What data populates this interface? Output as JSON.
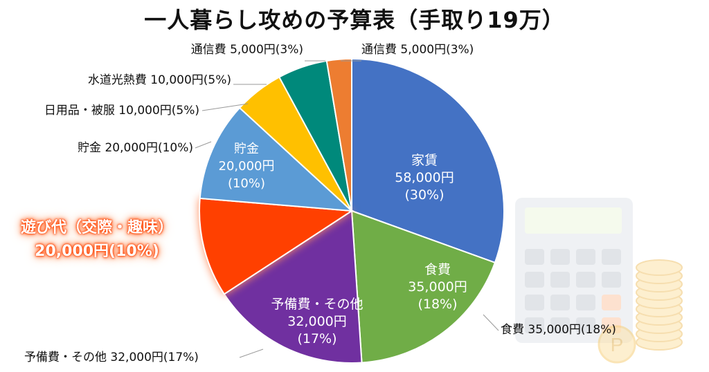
{
  "chart_data": {
    "type": "pie",
    "title": "一人暮らし攻めの予算表（手取り19万）",
    "slices": [
      {
        "label": "家賃",
        "value": 58000,
        "amount": "58,000円",
        "percent": "(30%)",
        "color": "#4472c4"
      },
      {
        "label": "食費",
        "value": 35000,
        "amount": "35,000円",
        "percent": "(18%)",
        "color": "#70ad47"
      },
      {
        "label": "予備費・その他",
        "value": 32000,
        "amount": "32,000円",
        "percent": "(17%)",
        "color": "#7030a0"
      },
      {
        "label": "遊び代（交際・趣味）",
        "value": 20000,
        "amount": "20,000円",
        "percent": "(10%)",
        "color": "#ff4000"
      },
      {
        "label": "貯金",
        "value": 20000,
        "amount": "20,000円",
        "percent": "(10%)",
        "color": "#5b9bd5"
      },
      {
        "label": "日用品・被服",
        "value": 10000,
        "amount": "10,000円",
        "percent": "(5%)",
        "color": "#ffc000"
      },
      {
        "label": "水道光熱費",
        "value": 10000,
        "amount": "10,000円",
        "percent": "(5%)",
        "color": "#00897b"
      },
      {
        "label": "通信費",
        "value": 5000,
        "amount": "5,000円",
        "percent": "(3%)",
        "color": "#ed7d31"
      }
    ],
    "inside_labels": {
      "rent": [
        "家賃",
        "58,000円",
        "(30%)"
      ],
      "food": [
        "食費",
        "35,000円",
        "(18%)"
      ],
      "reserve": [
        "予備費・その他",
        "32,000円",
        "(17%)"
      ],
      "savings": [
        "貯金",
        "20,000円",
        "(10%)"
      ]
    },
    "outside_labels": {
      "comm_left": "通信費 5,000円(3%)",
      "comm_right": "通信費 5,000円(3%)",
      "utilities": "水道光熱費 10,000円(5%)",
      "daily": "日用品・被服 10,000円(5%)",
      "savings": "貯金 20,000円(10%)",
      "food": "食費 35,000円(18%)",
      "reserve": "予備費・その他 32,000円(17%)"
    },
    "highlight": [
      "遊び代（交際・趣味）",
      "20,000円(10%)"
    ],
    "decoration": "calculator-and-coins-icon"
  }
}
